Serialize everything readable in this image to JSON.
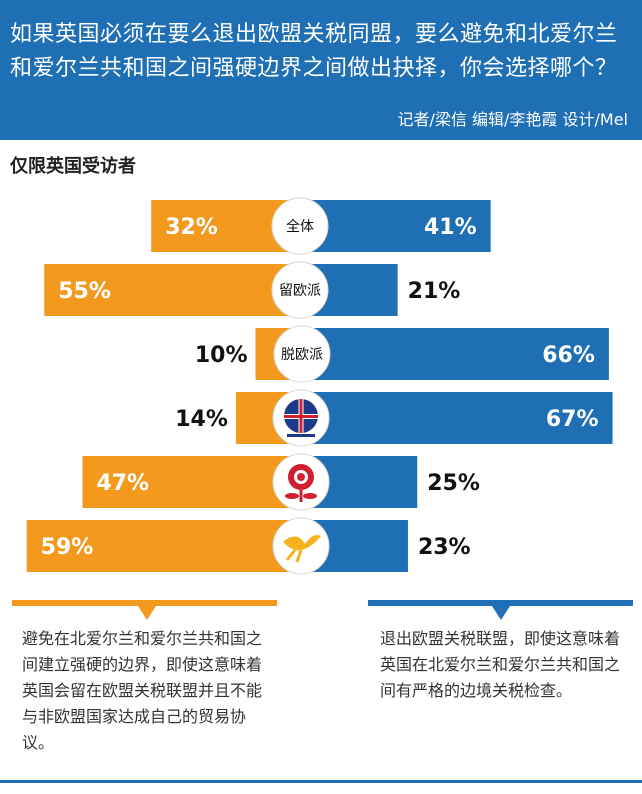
{
  "header": {
    "title": "如果英国必须在要么退出欧盟关税同盟，要么避免和北爱尔兰和爱尔兰共和国之间强硬边界之间做出抉择，你会选择哪个？",
    "credits": "记者/梁信   编辑/李艳霞  设计/Mel"
  },
  "subtitle": "仅限英国受访者",
  "colors": {
    "left": "#f39a1e",
    "right": "#1f6fb5",
    "header": "#1f6fb5"
  },
  "chart_data": {
    "type": "bar",
    "subtype": "diverging",
    "categories": [
      "全体",
      "留欧派",
      "脱欧派",
      "conservative-logo",
      "labour-logo",
      "libdem-logo"
    ],
    "category_labels": [
      "全体",
      "留欧派",
      "脱欧派",
      "",
      "",
      ""
    ],
    "series": [
      {
        "values": [
          32,
          55,
          10,
          14,
          47,
          59
        ],
        "labels": [
          "32%",
          "55%",
          "10%",
          "14%",
          "47%",
          "59%"
        ]
      },
      {
        "values": [
          41,
          21,
          66,
          67,
          25,
          23
        ],
        "labels": [
          "41%",
          "21%",
          "66%",
          "67%",
          "25%",
          "23%"
        ]
      }
    ],
    "legend": [
      "避免在北爱尔兰和爱尔兰共和国之间建立强硬的边界，即使这意味着英国会留在欧盟关税联盟并且不能与非欧盟国家达成自己的贸易协议。",
      "退出欧盟关税联盟，即使这意味着英国在北爱尔兰和爱尔兰共和国之间有严格的边境关税检查。"
    ]
  }
}
